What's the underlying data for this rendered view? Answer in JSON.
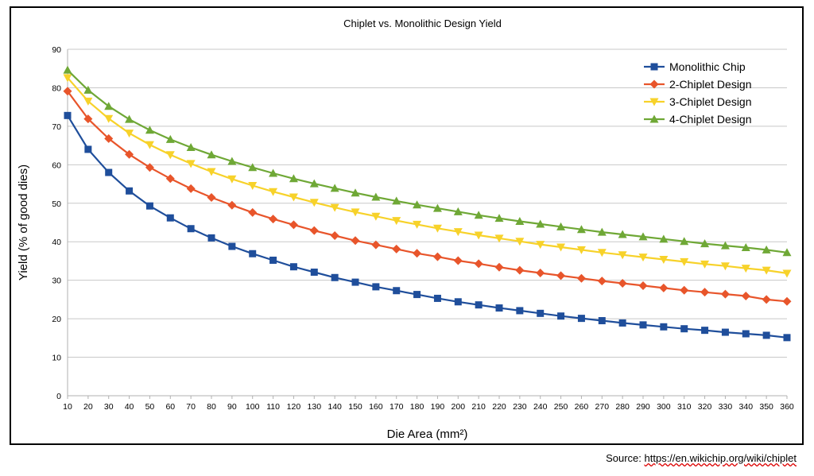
{
  "source": {
    "prefix": "Source:",
    "link": "https://en.wikichip.org/wiki/chiplet"
  },
  "chart_data": {
    "type": "line",
    "title": "Chiplet vs. Monolithic Design Yield",
    "xlabel": "Die Area (mm²)",
    "ylabel": "Yield (% of good dies)",
    "ylim": [
      0,
      90
    ],
    "yticks": [
      0,
      10,
      20,
      30,
      40,
      50,
      60,
      70,
      80,
      90
    ],
    "grid": true,
    "legend": "top-right",
    "x": [
      10,
      20,
      30,
      40,
      50,
      60,
      70,
      80,
      90,
      100,
      110,
      120,
      130,
      140,
      150,
      160,
      170,
      180,
      190,
      200,
      210,
      220,
      230,
      240,
      250,
      260,
      270,
      280,
      290,
      300,
      310,
      320,
      330,
      340,
      350,
      360
    ],
    "series": [
      {
        "name": "Monolithic Chip",
        "color": "#1f4e9b",
        "marker": "square",
        "values": [
          72.8,
          64.0,
          58.0,
          53.2,
          49.3,
          46.2,
          43.4,
          41.0,
          38.8,
          36.9,
          35.2,
          33.5,
          32.1,
          30.7,
          29.5,
          28.3,
          27.3,
          26.3,
          25.3,
          24.4,
          23.6,
          22.8,
          22.1,
          21.4,
          20.7,
          20.1,
          19.5,
          18.9,
          18.4,
          17.9,
          17.4,
          17.0,
          16.5,
          16.1,
          15.7,
          15.1
        ]
      },
      {
        "name": "2-Chiplet Design",
        "color": "#e8552b",
        "marker": "diamond",
        "values": [
          79.1,
          71.9,
          66.8,
          62.7,
          59.3,
          56.4,
          53.8,
          51.5,
          49.5,
          47.6,
          45.9,
          44.4,
          42.9,
          41.6,
          40.3,
          39.2,
          38.1,
          37.0,
          36.1,
          35.1,
          34.3,
          33.4,
          32.6,
          31.9,
          31.2,
          30.5,
          29.8,
          29.2,
          28.6,
          28.0,
          27.4,
          26.9,
          26.4,
          25.9,
          25.0,
          24.5
        ]
      },
      {
        "name": "3-Chiplet Design",
        "color": "#f7d22a",
        "marker": "triangle-down",
        "values": [
          82.6,
          76.5,
          72.0,
          68.2,
          65.2,
          62.6,
          60.3,
          58.2,
          56.3,
          54.6,
          53.0,
          51.6,
          50.2,
          48.9,
          47.7,
          46.6,
          45.5,
          44.5,
          43.5,
          42.6,
          41.7,
          40.9,
          40.1,
          39.3,
          38.6,
          37.9,
          37.2,
          36.6,
          36.0,
          35.4,
          34.8,
          34.2,
          33.7,
          33.1,
          32.6,
          31.8
        ]
      },
      {
        "name": "4-Chiplet Design",
        "color": "#6fa836",
        "marker": "triangle-up",
        "values": [
          84.6,
          79.4,
          75.2,
          71.8,
          69.0,
          66.6,
          64.5,
          62.6,
          60.9,
          59.3,
          57.8,
          56.4,
          55.1,
          53.9,
          52.7,
          51.6,
          50.6,
          49.6,
          48.7,
          47.8,
          46.9,
          46.1,
          45.3,
          44.6,
          43.9,
          43.2,
          42.5,
          41.9,
          41.3,
          40.7,
          40.1,
          39.5,
          39.0,
          38.5,
          37.9,
          37.2
        ]
      }
    ]
  }
}
